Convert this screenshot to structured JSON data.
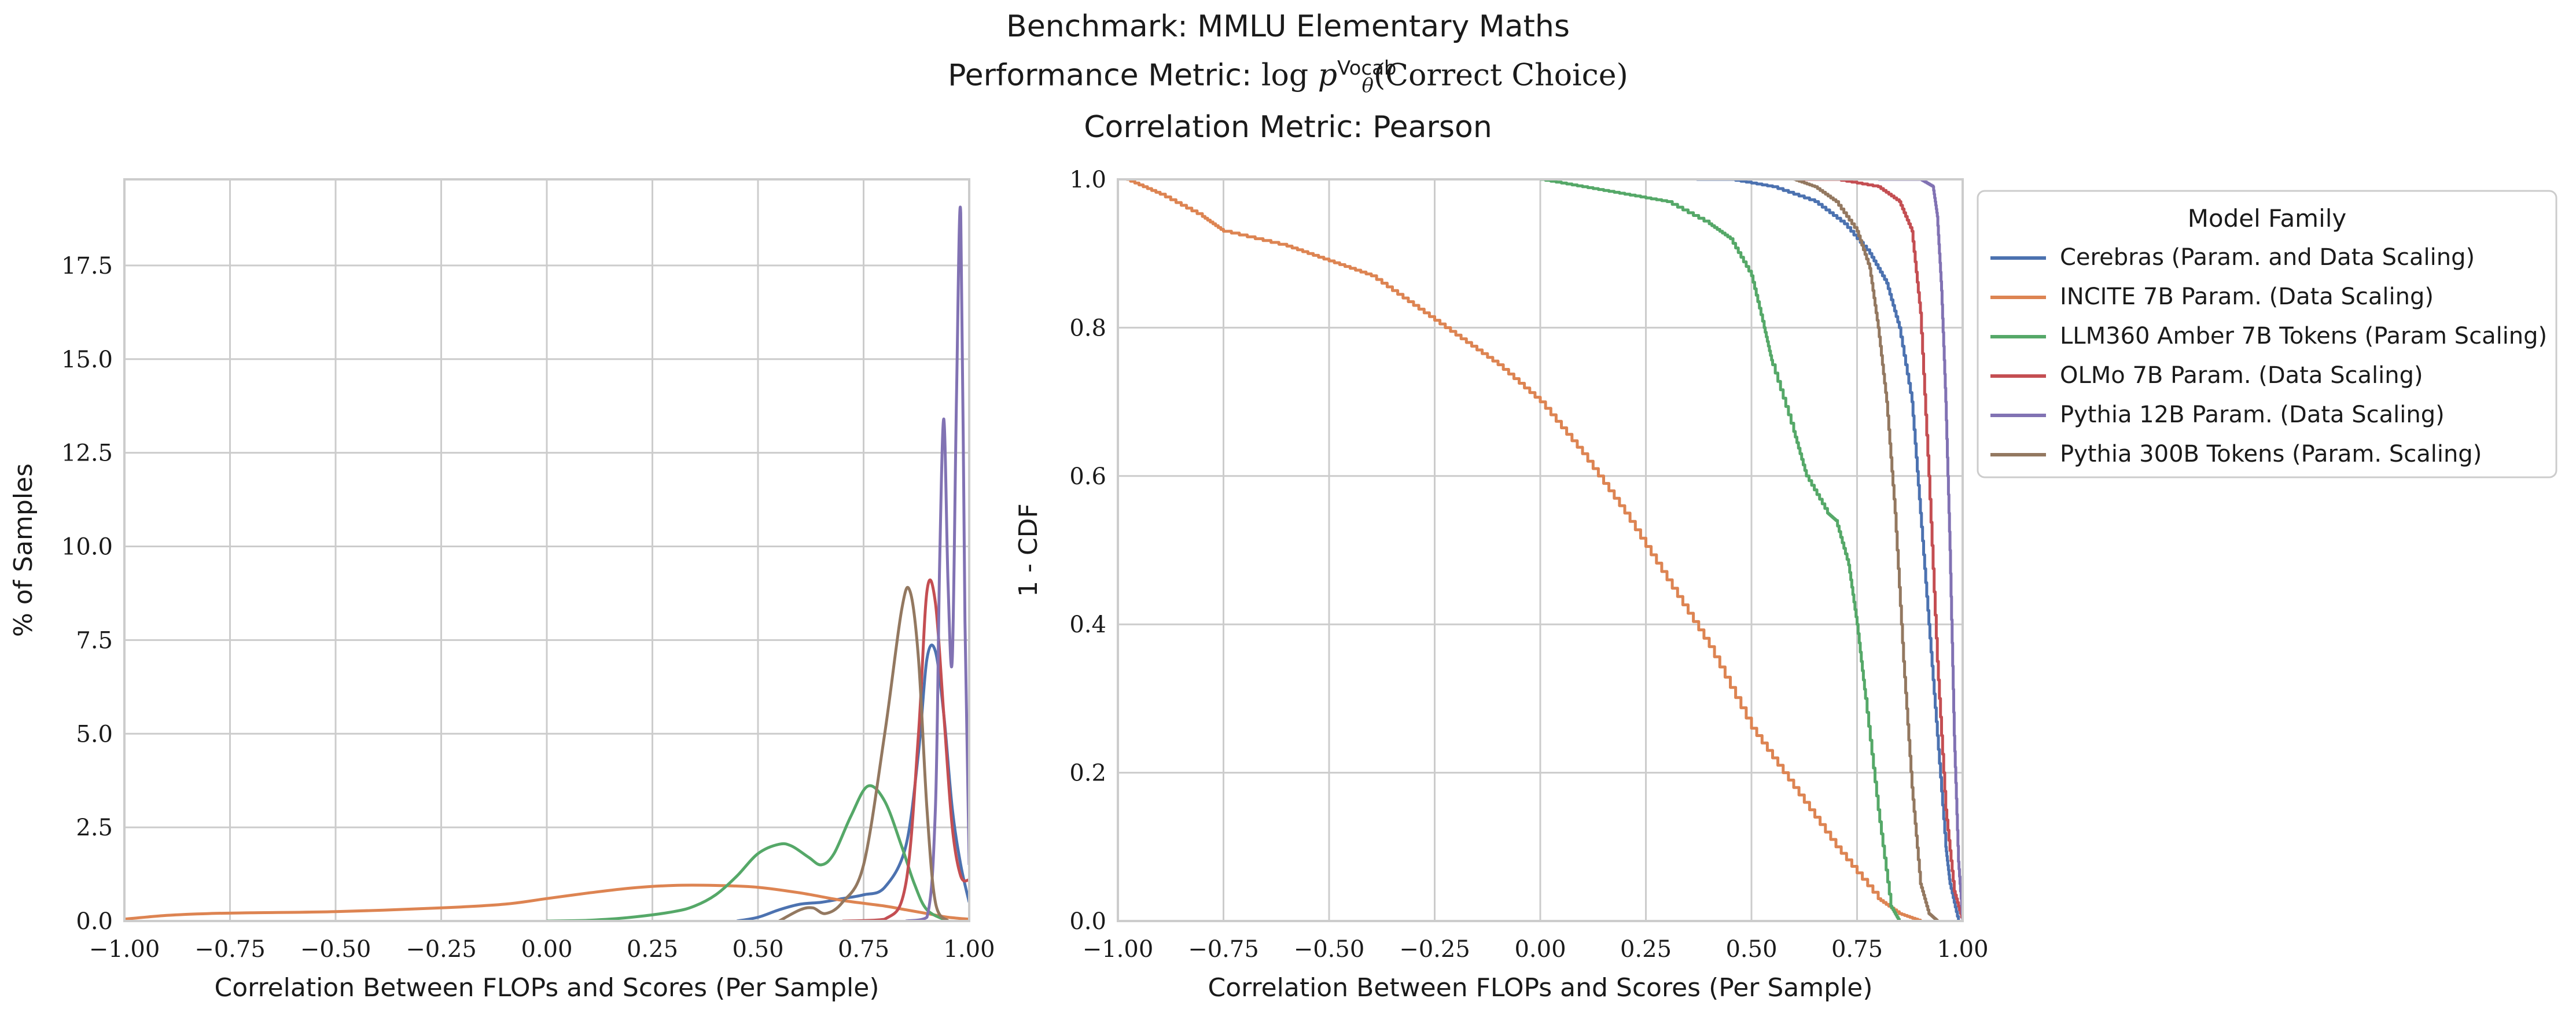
{
  "figure": {
    "title_line1": "Benchmark: MMLU Elementary Maths",
    "title_line2_prefix": "Performance Metric:",
    "title_line2_fn": "log",
    "title_line2_var": "p",
    "title_line2_sup": "Vocab",
    "title_line2_sub": "θ",
    "title_line2_arg": "(Correct Choice)",
    "title_line3": "Correlation Metric: Pearson"
  },
  "colors": {
    "Cerebras (Param. and Data Scaling)": "#4c72b0",
    "INCITE 7B Param. (Data Scaling)": "#dd8452",
    "LLM360 Amber 7B Tokens (Param Scaling)": "#55a868",
    "OLMo 7B Param. (Data Scaling)": "#c44e52",
    "Pythia 12B Param. (Data Scaling)": "#8172b3",
    "Pythia 300B Tokens (Param. Scaling)": "#937860",
    "grid": "#cccccc",
    "spine": "#cccccc"
  },
  "chart_data": [
    {
      "type": "line",
      "subtype": "kde",
      "xlabel": "Correlation Between FLOPs and Scores (Per Sample)",
      "ylabel": "% of Samples",
      "xlim": [
        -1.0,
        1.0
      ],
      "ylim": [
        0,
        19.8
      ],
      "xticks": [
        -1.0,
        -0.75,
        -0.5,
        -0.25,
        0.0,
        0.25,
        0.5,
        0.75,
        1.0
      ],
      "xtick_labels": [
        "−1.00",
        "−0.75",
        "−0.50",
        "−0.25",
        "0.00",
        "0.25",
        "0.50",
        "0.75",
        "1.00"
      ],
      "yticks": [
        0.0,
        2.5,
        5.0,
        7.5,
        10.0,
        12.5,
        15.0,
        17.5
      ],
      "ytick_labels": [
        "0.0",
        "2.5",
        "5.0",
        "7.5",
        "10.0",
        "12.5",
        "15.0",
        "17.5"
      ],
      "grid": true,
      "series": [
        {
          "name": "Cerebras (Param. and Data Scaling)",
          "x": [
            0.45,
            0.5,
            0.55,
            0.6,
            0.65,
            0.7,
            0.75,
            0.8,
            0.85,
            0.88,
            0.9,
            0.92,
            0.94,
            0.96,
            0.98,
            1.0
          ],
          "y": [
            0,
            0.1,
            0.3,
            0.45,
            0.5,
            0.6,
            0.7,
            0.9,
            2.0,
            4.5,
            7.0,
            7.2,
            5.5,
            3.0,
            1.5,
            0.5
          ]
        },
        {
          "name": "INCITE 7B Param. (Data Scaling)",
          "x": [
            -1.0,
            -0.9,
            -0.8,
            -0.7,
            -0.5,
            -0.25,
            -0.1,
            0.0,
            0.1,
            0.2,
            0.3,
            0.4,
            0.5,
            0.6,
            0.7,
            0.8,
            0.85,
            0.9,
            0.95,
            1.0
          ],
          "y": [
            0.05,
            0.15,
            0.2,
            0.22,
            0.25,
            0.35,
            0.45,
            0.6,
            0.75,
            0.88,
            0.95,
            0.95,
            0.9,
            0.75,
            0.55,
            0.4,
            0.3,
            0.2,
            0.1,
            0.05
          ]
        },
        {
          "name": "LLM360 Amber 7B Tokens (Param Scaling)",
          "x": [
            0.0,
            0.1,
            0.2,
            0.3,
            0.35,
            0.4,
            0.45,
            0.5,
            0.55,
            0.58,
            0.62,
            0.65,
            0.68,
            0.72,
            0.76,
            0.8,
            0.84,
            0.87,
            0.9,
            0.95
          ],
          "y": [
            0,
            0.02,
            0.1,
            0.25,
            0.4,
            0.7,
            1.2,
            1.8,
            2.05,
            2.0,
            1.7,
            1.5,
            1.8,
            2.8,
            3.6,
            3.2,
            2.0,
            1.0,
            0.3,
            0
          ]
        },
        {
          "name": "OLMo 7B Param. (Data Scaling)",
          "x": [
            0.7,
            0.8,
            0.85,
            0.88,
            0.9,
            0.92,
            0.94,
            0.96,
            0.98,
            1.0
          ],
          "y": [
            0,
            0.05,
            1.0,
            5.0,
            8.8,
            8.5,
            5.5,
            2.5,
            1.2,
            1.1
          ]
        },
        {
          "name": "Pythia 12B Param. (Data Scaling)",
          "x": [
            0.85,
            0.9,
            0.92,
            0.93,
            0.94,
            0.95,
            0.96,
            0.97,
            0.98,
            0.99,
            1.0
          ],
          "y": [
            0,
            0.1,
            3.0,
            9.5,
            13.4,
            9.0,
            7.0,
            14.0,
            18.9,
            8.0,
            1.5
          ]
        },
        {
          "name": "Pythia 300B Tokens (Param. Scaling)",
          "x": [
            0.55,
            0.6,
            0.63,
            0.66,
            0.7,
            0.75,
            0.8,
            0.84,
            0.86,
            0.88,
            0.9,
            0.92,
            0.95
          ],
          "y": [
            0,
            0.3,
            0.35,
            0.2,
            0.5,
            1.5,
            5.0,
            8.3,
            8.8,
            7.0,
            3.0,
            0.5,
            0
          ]
        }
      ]
    },
    {
      "type": "line",
      "subtype": "step-survival",
      "xlabel": "Correlation Between FLOPs and Scores (Per Sample)",
      "ylabel": "1 - CDF",
      "xlim": [
        -1.0,
        1.0
      ],
      "ylim": [
        0,
        1.0
      ],
      "xticks": [
        -1.0,
        -0.75,
        -0.5,
        -0.25,
        0.0,
        0.25,
        0.5,
        0.75,
        1.0
      ],
      "xtick_labels": [
        "−1.00",
        "−0.75",
        "−0.50",
        "−0.25",
        "0.00",
        "0.25",
        "0.50",
        "0.75",
        "1.00"
      ],
      "yticks": [
        0.0,
        0.2,
        0.4,
        0.6,
        0.8,
        1.0
      ],
      "ytick_labels": [
        "0.0",
        "0.2",
        "0.4",
        "0.6",
        "0.8",
        "1.0"
      ],
      "grid": true,
      "legend": {
        "title": "Model Family",
        "position": "outside upper right"
      },
      "series": [
        {
          "name": "Cerebras (Param. and Data Scaling)",
          "x": [
            0.37,
            0.45,
            0.55,
            0.65,
            0.72,
            0.78,
            0.82,
            0.85,
            0.88,
            0.9,
            0.92,
            0.94,
            0.96,
            0.97,
            0.99
          ],
          "y": [
            1.0,
            1.0,
            0.99,
            0.97,
            0.94,
            0.9,
            0.86,
            0.8,
            0.7,
            0.55,
            0.4,
            0.25,
            0.1,
            0.05,
            0.0
          ]
        },
        {
          "name": "INCITE 7B Param. (Data Scaling)",
          "x": [
            -0.98,
            -0.9,
            -0.8,
            -0.75,
            -0.6,
            -0.5,
            -0.4,
            -0.3,
            -0.2,
            -0.1,
            0.0,
            0.1,
            0.2,
            0.3,
            0.4,
            0.5,
            0.6,
            0.7,
            0.8,
            0.85,
            0.9
          ],
          "y": [
            1.0,
            0.98,
            0.95,
            0.93,
            0.91,
            0.89,
            0.87,
            0.83,
            0.79,
            0.75,
            0.7,
            0.63,
            0.55,
            0.46,
            0.37,
            0.26,
            0.18,
            0.1,
            0.03,
            0.01,
            0.0
          ]
        },
        {
          "name": "LLM360 Amber 7B Tokens (Param Scaling)",
          "x": [
            0.0,
            0.1,
            0.2,
            0.3,
            0.4,
            0.45,
            0.5,
            0.53,
            0.55,
            0.6,
            0.63,
            0.68,
            0.7,
            0.73,
            0.75,
            0.77,
            0.8,
            0.83,
            0.85
          ],
          "y": [
            1.0,
            0.99,
            0.98,
            0.97,
            0.94,
            0.92,
            0.87,
            0.8,
            0.75,
            0.66,
            0.6,
            0.55,
            0.54,
            0.48,
            0.4,
            0.3,
            0.15,
            0.02,
            0.0
          ]
        },
        {
          "name": "OLMo 7B Param. (Data Scaling)",
          "x": [
            0.6,
            0.7,
            0.8,
            0.85,
            0.88,
            0.9,
            0.92,
            0.94,
            0.96,
            0.98,
            1.0
          ],
          "y": [
            1.0,
            1.0,
            0.99,
            0.97,
            0.93,
            0.82,
            0.6,
            0.35,
            0.15,
            0.04,
            0.0
          ]
        },
        {
          "name": "Pythia 12B Param. (Data Scaling)",
          "x": [
            0.8,
            0.9,
            0.93,
            0.94,
            0.95,
            0.96,
            0.97,
            0.98,
            0.99,
            1.0
          ],
          "y": [
            1.0,
            1.0,
            0.99,
            0.95,
            0.85,
            0.7,
            0.5,
            0.25,
            0.08,
            0.0
          ]
        },
        {
          "name": "Pythia 300B Tokens (Param. Scaling)",
          "x": [
            0.6,
            0.65,
            0.7,
            0.75,
            0.78,
            0.8,
            0.82,
            0.84,
            0.86,
            0.88,
            0.9,
            0.92,
            0.94
          ],
          "y": [
            1.0,
            0.99,
            0.97,
            0.93,
            0.88,
            0.8,
            0.7,
            0.55,
            0.35,
            0.18,
            0.05,
            0.01,
            0.0
          ]
        }
      ]
    }
  ]
}
